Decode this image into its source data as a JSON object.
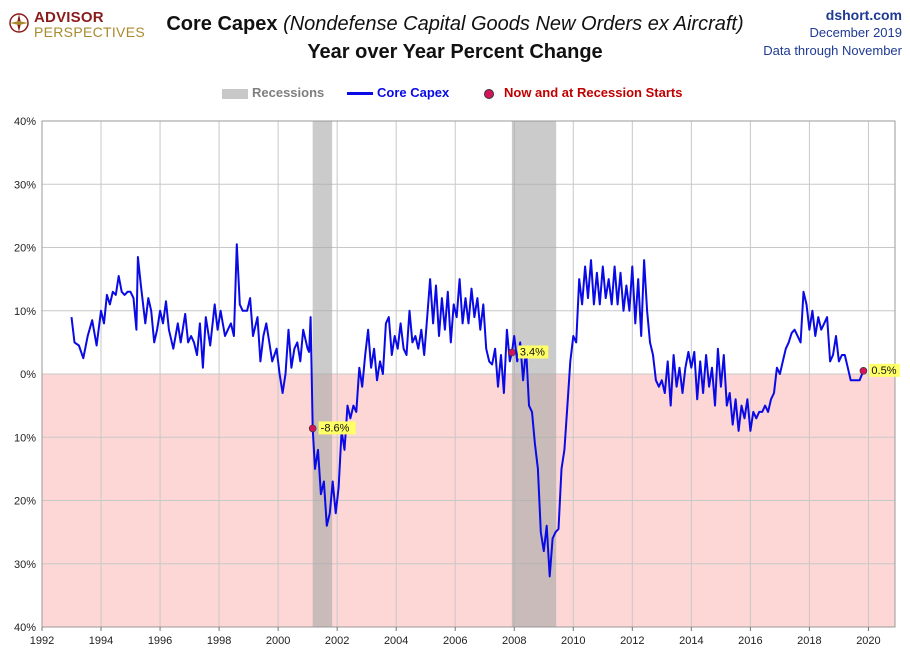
{
  "header": {
    "logo_line1": "ADVISOR",
    "logo_line2": "PERSPECTIVES",
    "title_main": "Core Capex",
    "title_paren": "(Nondefense  Capital Goods New Orders ex Aircraft)",
    "subtitle": "Year over Year Percent Change",
    "source_site": "dshort.com",
    "source_date": "December 2019",
    "source_note": "Data through November"
  },
  "legend": {
    "recessions_label": "Recessions",
    "series_label": "Core Capex",
    "markers_label": "Now and at Recession Starts"
  },
  "colors": {
    "series": "#0a0ae6",
    "recession": "#a9a9a9",
    "negative_zone": "#fdd6d6",
    "marker": "#d4145a",
    "annotation_bg": "#ffff66",
    "grid": "#c8c8c8",
    "legend_recession_text": "#7f7f7f",
    "legend_series_text": "#0a0ae6",
    "legend_marker_text": "#c00000"
  },
  "chart_data": {
    "type": "line",
    "title": "Core Capex (Nondefense  Capital Goods New Orders ex Aircraft)",
    "subtitle": "Year over Year Percent Change",
    "xlabel": "",
    "ylabel": "",
    "xlim": [
      1992,
      2020.9
    ],
    "ylim": [
      -40,
      40
    ],
    "x_ticks": [
      1992,
      1994,
      1996,
      1998,
      2000,
      2002,
      2004,
      2006,
      2008,
      2010,
      2012,
      2014,
      2016,
      2018,
      2020
    ],
    "x_tick_labels": [
      "1992",
      "1994",
      "1996",
      "1998",
      "2000",
      "2002",
      "2004",
      "2006",
      "2008",
      "2010",
      "2012",
      "2014",
      "2016",
      "2018",
      "2020"
    ],
    "y_ticks": [
      40,
      30,
      20,
      10,
      0,
      -10,
      -20,
      -30,
      -40
    ],
    "y_tick_labels": [
      "40%",
      "30%",
      "20%",
      "10%",
      "0%",
      "10%",
      "20%",
      "30%",
      "40%"
    ],
    "grid": true,
    "legend_position": "top-center",
    "recessions": [
      {
        "start": 2001.17,
        "end": 2001.83
      },
      {
        "start": 2007.92,
        "end": 2009.42
      }
    ],
    "markers": [
      {
        "x": 2001.17,
        "y": -8.6,
        "label": "-8.6%"
      },
      {
        "x": 2007.92,
        "y": 3.4,
        "label": "3.4%"
      },
      {
        "x": 2019.83,
        "y": 0.5,
        "label": "0.5%"
      }
    ],
    "series": [
      {
        "name": "Core Capex",
        "points": [
          [
            1993.0,
            9
          ],
          [
            1993.1,
            5
          ],
          [
            1993.25,
            4.5
          ],
          [
            1993.4,
            2.5
          ],
          [
            1993.55,
            6
          ],
          [
            1993.7,
            8.5
          ],
          [
            1993.85,
            4.5
          ],
          [
            1994.0,
            10
          ],
          [
            1994.1,
            8
          ],
          [
            1994.2,
            12.5
          ],
          [
            1994.3,
            11
          ],
          [
            1994.4,
            13
          ],
          [
            1994.5,
            12.5
          ],
          [
            1994.6,
            15.5
          ],
          [
            1994.7,
            13
          ],
          [
            1994.8,
            12.5
          ],
          [
            1994.9,
            13
          ],
          [
            1995.0,
            13
          ],
          [
            1995.1,
            12
          ],
          [
            1995.2,
            7
          ],
          [
            1995.25,
            18.5
          ],
          [
            1995.35,
            14
          ],
          [
            1995.5,
            8
          ],
          [
            1995.6,
            12
          ],
          [
            1995.7,
            10
          ],
          [
            1995.8,
            5
          ],
          [
            1995.9,
            7
          ],
          [
            1996.0,
            10
          ],
          [
            1996.1,
            8
          ],
          [
            1996.2,
            11.5
          ],
          [
            1996.3,
            7
          ],
          [
            1996.45,
            4
          ],
          [
            1996.6,
            8
          ],
          [
            1996.7,
            5
          ],
          [
            1996.85,
            9.5
          ],
          [
            1996.95,
            5
          ],
          [
            1997.05,
            6
          ],
          [
            1997.15,
            5
          ],
          [
            1997.25,
            3
          ],
          [
            1997.35,
            8
          ],
          [
            1997.45,
            1
          ],
          [
            1997.55,
            9
          ],
          [
            1997.7,
            4.5
          ],
          [
            1997.85,
            11
          ],
          [
            1997.95,
            7
          ],
          [
            1998.05,
            10
          ],
          [
            1998.2,
            6
          ],
          [
            1998.3,
            7
          ],
          [
            1998.4,
            8
          ],
          [
            1998.5,
            6
          ],
          [
            1998.6,
            20.5
          ],
          [
            1998.7,
            11
          ],
          [
            1998.8,
            10
          ],
          [
            1998.95,
            10
          ],
          [
            1999.05,
            12
          ],
          [
            1999.15,
            6
          ],
          [
            1999.3,
            9
          ],
          [
            1999.4,
            2
          ],
          [
            1999.5,
            6
          ],
          [
            1999.6,
            8
          ],
          [
            1999.7,
            5
          ],
          [
            1999.8,
            2
          ],
          [
            1999.95,
            4
          ],
          [
            2000.05,
            0
          ],
          [
            2000.15,
            -3
          ],
          [
            2000.25,
            0
          ],
          [
            2000.35,
            7
          ],
          [
            2000.45,
            1
          ],
          [
            2000.55,
            4
          ],
          [
            2000.65,
            5
          ],
          [
            2000.75,
            2
          ],
          [
            2000.85,
            7
          ],
          [
            2001.0,
            4
          ],
          [
            2001.05,
            3.5
          ],
          [
            2001.1,
            9
          ],
          [
            2001.17,
            -8.6
          ],
          [
            2001.25,
            -15
          ],
          [
            2001.35,
            -12
          ],
          [
            2001.45,
            -19
          ],
          [
            2001.55,
            -17
          ],
          [
            2001.65,
            -24
          ],
          [
            2001.75,
            -22
          ],
          [
            2001.85,
            -17
          ],
          [
            2001.95,
            -22
          ],
          [
            2002.05,
            -18
          ],
          [
            2002.15,
            -9
          ],
          [
            2002.25,
            -12
          ],
          [
            2002.35,
            -5
          ],
          [
            2002.45,
            -7
          ],
          [
            2002.55,
            -5
          ],
          [
            2002.65,
            -6
          ],
          [
            2002.75,
            1
          ],
          [
            2002.85,
            -2
          ],
          [
            2002.95,
            3
          ],
          [
            2003.05,
            7
          ],
          [
            2003.15,
            1
          ],
          [
            2003.25,
            4
          ],
          [
            2003.35,
            -1
          ],
          [
            2003.45,
            2
          ],
          [
            2003.55,
            0
          ],
          [
            2003.65,
            8
          ],
          [
            2003.75,
            9
          ],
          [
            2003.85,
            3
          ],
          [
            2003.95,
            6
          ],
          [
            2004.05,
            4
          ],
          [
            2004.15,
            8
          ],
          [
            2004.25,
            4
          ],
          [
            2004.35,
            3
          ],
          [
            2004.45,
            10
          ],
          [
            2004.55,
            5
          ],
          [
            2004.65,
            6
          ],
          [
            2004.75,
            4
          ],
          [
            2004.85,
            7
          ],
          [
            2004.95,
            3
          ],
          [
            2005.05,
            9
          ],
          [
            2005.15,
            15
          ],
          [
            2005.25,
            8
          ],
          [
            2005.35,
            14
          ],
          [
            2005.45,
            6
          ],
          [
            2005.55,
            12
          ],
          [
            2005.65,
            7
          ],
          [
            2005.75,
            13
          ],
          [
            2005.85,
            5
          ],
          [
            2005.95,
            11
          ],
          [
            2006.05,
            9
          ],
          [
            2006.15,
            15
          ],
          [
            2006.25,
            8
          ],
          [
            2006.35,
            12
          ],
          [
            2006.45,
            8
          ],
          [
            2006.55,
            13.5
          ],
          [
            2006.65,
            9
          ],
          [
            2006.75,
            12
          ],
          [
            2006.85,
            7
          ],
          [
            2006.95,
            11
          ],
          [
            2007.05,
            4
          ],
          [
            2007.15,
            2
          ],
          [
            2007.25,
            1.5
          ],
          [
            2007.35,
            4
          ],
          [
            2007.45,
            -2
          ],
          [
            2007.55,
            3
          ],
          [
            2007.65,
            -3
          ],
          [
            2007.75,
            7
          ],
          [
            2007.85,
            2
          ],
          [
            2007.92,
            3.4
          ],
          [
            2008.0,
            6
          ],
          [
            2008.1,
            2
          ],
          [
            2008.2,
            5
          ],
          [
            2008.3,
            -1
          ],
          [
            2008.4,
            4
          ],
          [
            2008.5,
            -5
          ],
          [
            2008.6,
            -6
          ],
          [
            2008.7,
            -11
          ],
          [
            2008.8,
            -15
          ],
          [
            2008.9,
            -25
          ],
          [
            2009.0,
            -28
          ],
          [
            2009.1,
            -24
          ],
          [
            2009.2,
            -32
          ],
          [
            2009.3,
            -26
          ],
          [
            2009.4,
            -25
          ],
          [
            2009.5,
            -24.5
          ],
          [
            2009.6,
            -15
          ],
          [
            2009.7,
            -12
          ],
          [
            2009.8,
            -5
          ],
          [
            2009.9,
            2
          ],
          [
            2010.0,
            6
          ],
          [
            2010.1,
            5
          ],
          [
            2010.2,
            15
          ],
          [
            2010.3,
            11
          ],
          [
            2010.4,
            17
          ],
          [
            2010.5,
            12
          ],
          [
            2010.6,
            18
          ],
          [
            2010.7,
            11
          ],
          [
            2010.8,
            16
          ],
          [
            2010.9,
            11
          ],
          [
            2011.0,
            17
          ],
          [
            2011.1,
            12
          ],
          [
            2011.2,
            15
          ],
          [
            2011.3,
            11
          ],
          [
            2011.4,
            17
          ],
          [
            2011.5,
            11
          ],
          [
            2011.6,
            16
          ],
          [
            2011.7,
            10
          ],
          [
            2011.8,
            14
          ],
          [
            2011.9,
            10
          ],
          [
            2012.0,
            17
          ],
          [
            2012.1,
            8
          ],
          [
            2012.2,
            15
          ],
          [
            2012.3,
            6
          ],
          [
            2012.4,
            18
          ],
          [
            2012.5,
            10
          ],
          [
            2012.6,
            5
          ],
          [
            2012.7,
            3
          ],
          [
            2012.8,
            -1
          ],
          [
            2012.9,
            -2
          ],
          [
            2013.0,
            -1
          ],
          [
            2013.1,
            -3
          ],
          [
            2013.2,
            2
          ],
          [
            2013.3,
            -5
          ],
          [
            2013.4,
            3
          ],
          [
            2013.5,
            -2
          ],
          [
            2013.6,
            1
          ],
          [
            2013.7,
            -3
          ],
          [
            2013.8,
            1
          ],
          [
            2013.9,
            3.5
          ],
          [
            2014.0,
            1
          ],
          [
            2014.1,
            3.5
          ],
          [
            2014.2,
            -4
          ],
          [
            2014.3,
            2
          ],
          [
            2014.4,
            -3
          ],
          [
            2014.5,
            3
          ],
          [
            2014.6,
            -2
          ],
          [
            2014.7,
            1
          ],
          [
            2014.8,
            -5
          ],
          [
            2014.9,
            4
          ],
          [
            2015.0,
            -2
          ],
          [
            2015.1,
            3
          ],
          [
            2015.2,
            -5
          ],
          [
            2015.3,
            -3
          ],
          [
            2015.4,
            -8
          ],
          [
            2015.5,
            -4
          ],
          [
            2015.6,
            -9
          ],
          [
            2015.7,
            -5
          ],
          [
            2015.8,
            -7
          ],
          [
            2015.9,
            -4
          ],
          [
            2016.0,
            -9
          ],
          [
            2016.1,
            -6
          ],
          [
            2016.2,
            -7
          ],
          [
            2016.3,
            -6
          ],
          [
            2016.4,
            -6
          ],
          [
            2016.5,
            -5
          ],
          [
            2016.6,
            -6
          ],
          [
            2016.7,
            -4
          ],
          [
            2016.8,
            -3
          ],
          [
            2016.9,
            1
          ],
          [
            2017.0,
            0
          ],
          [
            2017.1,
            2
          ],
          [
            2017.2,
            4
          ],
          [
            2017.3,
            5
          ],
          [
            2017.4,
            6.5
          ],
          [
            2017.5,
            7
          ],
          [
            2017.6,
            6
          ],
          [
            2017.7,
            5
          ],
          [
            2017.8,
            13
          ],
          [
            2017.9,
            11
          ],
          [
            2018.0,
            7
          ],
          [
            2018.1,
            10
          ],
          [
            2018.2,
            6
          ],
          [
            2018.3,
            9
          ],
          [
            2018.4,
            7
          ],
          [
            2018.5,
            8
          ],
          [
            2018.6,
            9
          ],
          [
            2018.7,
            2
          ],
          [
            2018.8,
            3
          ],
          [
            2018.9,
            6
          ],
          [
            2019.0,
            2
          ],
          [
            2019.1,
            3
          ],
          [
            2019.2,
            3
          ],
          [
            2019.3,
            1
          ],
          [
            2019.4,
            -1
          ],
          [
            2019.5,
            -1
          ],
          [
            2019.6,
            -1
          ],
          [
            2019.7,
            -1
          ],
          [
            2019.83,
            0.5
          ]
        ]
      }
    ]
  }
}
